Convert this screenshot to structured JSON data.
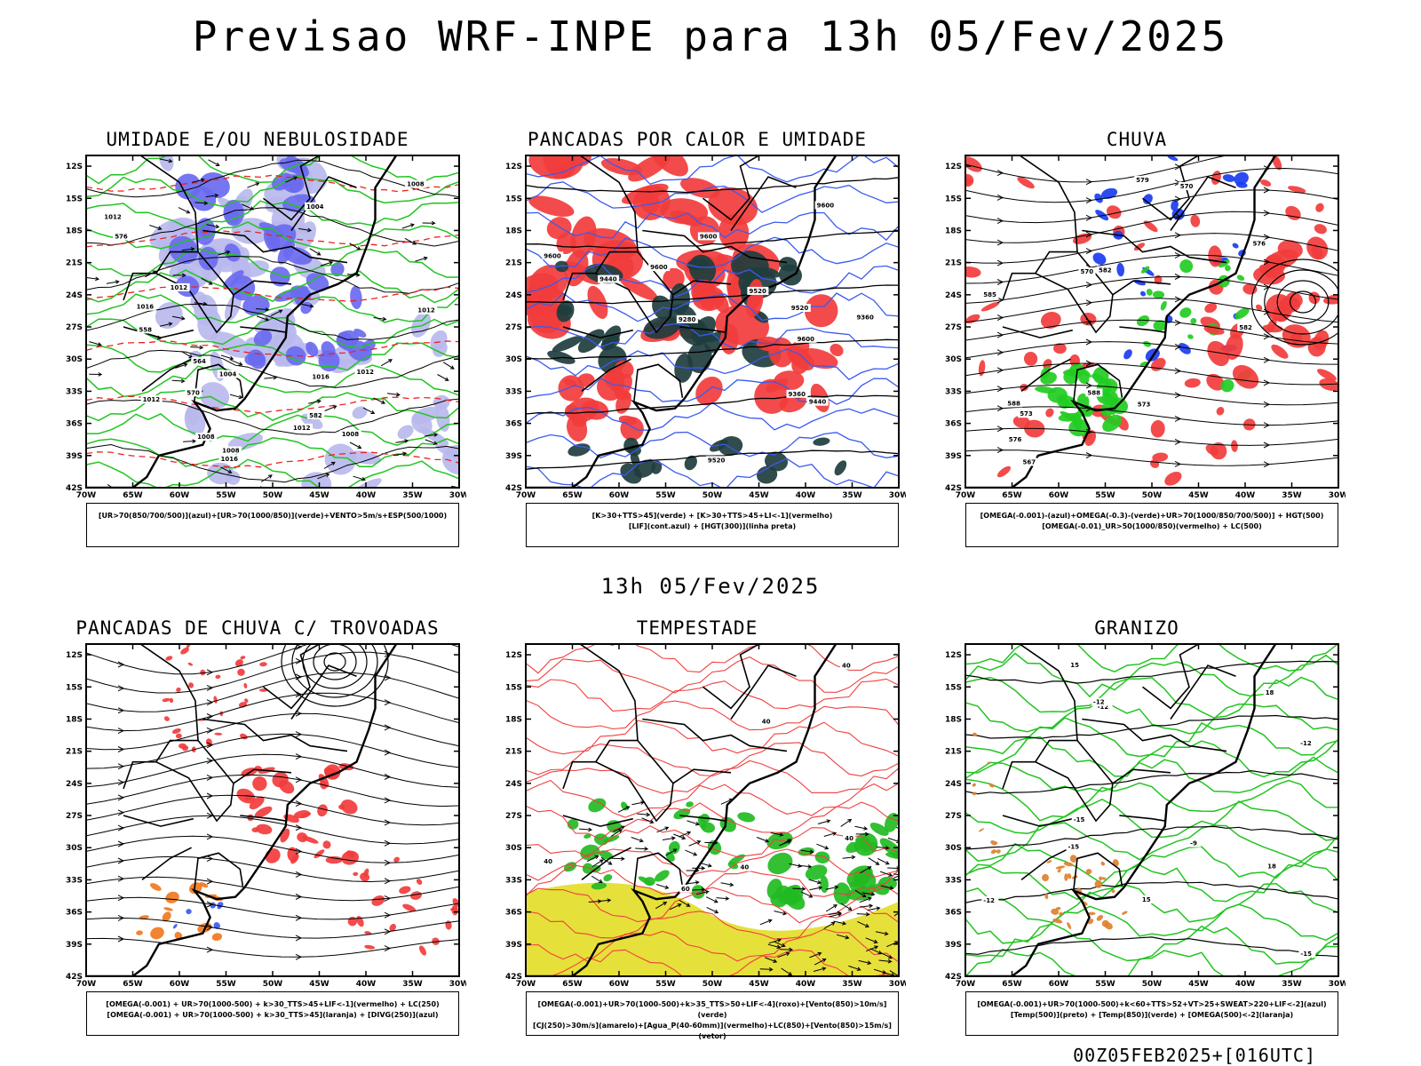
{
  "header": {
    "title": "Previsao WRF-INPE  para 13h 05/Fev/2025",
    "mid_time": "13h 05/Fev/2025",
    "footer": "00Z05FEB2025+[016UTC]"
  },
  "axes": {
    "lat_labels": [
      "12S",
      "15S",
      "18S",
      "21S",
      "24S",
      "27S",
      "30S",
      "33S",
      "36S",
      "39S",
      "42S"
    ],
    "lon_labels": [
      "70W",
      "65W",
      "60W",
      "55W",
      "50W",
      "45W",
      "40W",
      "35W",
      "30W"
    ]
  },
  "panels": [
    {
      "title": "UMIDADE E/OU NEBULOSIDADE",
      "legend": [
        "[UR>70(850/700/500)](azul)+[UR>70(1000/850)](verde)+VENTO>5m/s+ESP(500/1000)"
      ],
      "contour_labels": [
        "1012",
        "1012",
        "1008",
        "1008",
        "1012",
        "1008",
        "1016",
        "1016",
        "1012",
        "1004",
        "1012",
        "1008",
        "1016",
        "1012",
        "1004",
        "576",
        "570",
        "582",
        "564",
        "558"
      ],
      "colors": {
        "shade1": "#6a6af0",
        "shade2": "#b8b8ee",
        "contour": "#22c422",
        "dash": "#ee2222"
      }
    },
    {
      "title": "PANCADAS POR CALOR E UMIDADE",
      "legend": [
        "[K>30+TTS>45](verde) + [K>30+TTS>45+LI<-1](vermelho)",
        "[LIF](cont.azul) + [HGT(300)](linha preta)"
      ],
      "contour_labels": [
        "9600",
        "9600",
        "9600",
        "9600",
        "9520",
        "9520",
        "9360",
        "9280",
        "9440",
        "9360",
        "9440",
        "9520",
        "9600"
      ],
      "colors": {
        "shade1": "#f23c3c",
        "shade2": "#1f3d3d",
        "contour": "#3a5af0"
      }
    },
    {
      "title": "CHUVA",
      "legend": [
        "[OMEGA(-0.001)-(azul)+OMEGA(-0.3)-(verde)+UR>70(1000/850/700/500)] + HGT(500)",
        "[OMEGA(-0.01)_UR>50(1000/850)(vermelho) + LC(500)"
      ],
      "contour_labels": [
        "585",
        "588",
        "582",
        "576",
        "570",
        "567",
        "582",
        "579",
        "573",
        "573",
        "570",
        "576",
        "588"
      ],
      "colors": {
        "shade1": "#f23c3c",
        "shade2": "#1a3cf0",
        "shade3": "#22cc22"
      }
    },
    {
      "title": "PANCADAS DE CHUVA C/ TROVOADAS",
      "legend": [
        "[OMEGA(-0.001) + UR>70(1000-500) + k>30_TTS>45+LIF<-1](vermelho) + LC(250)",
        "[OMEGA(-0.001) + UR>70(1000-500) + k>30_TTS>45](laranja) + [DIVG(250)](azul)"
      ],
      "contour_labels": [],
      "colors": {
        "shade1": "#f23c3c",
        "shade2": "#f07820",
        "shade3": "#3a5af0"
      }
    },
    {
      "title": "TEMPESTADE",
      "legend": [
        "[OMEGA(-0.001)+UR>70(1000-500)+k>35_TTS>50+LIF<-4](roxo)+[Vento(850)>10m/s](verde)",
        "[CJ(250)>30m/s](amarelo)+[Agua_P(40-60mm)](vermelho)+LC(850)+[Vento(850)>15m/s](vetor)"
      ],
      "contour_labels": [
        "40",
        "40",
        "60",
        "40",
        "40",
        "40"
      ],
      "colors": {
        "shade1": "#e6e03a",
        "shade2": "#22bb22",
        "contour": "#f04040"
      }
    },
    {
      "title": "GRANIZO",
      "legend": [
        "[OMEGA(-0.001)+UR>70(1000-500)+k<60+TTS>52+VT>25+SWEAT>220+LIF<-2](azul)",
        "[Temp(500)](preto) + [Temp(850)](verde) + [OMEGA(500)<-2](laranja)"
      ],
      "contour_labels": [
        "-12",
        "-12",
        "-15",
        "-12",
        "-12",
        "-15",
        "-15",
        "-9",
        "15",
        "15",
        "18",
        "18"
      ],
      "colors": {
        "contour": "#22c422",
        "shade1": "#e08030"
      }
    }
  ]
}
